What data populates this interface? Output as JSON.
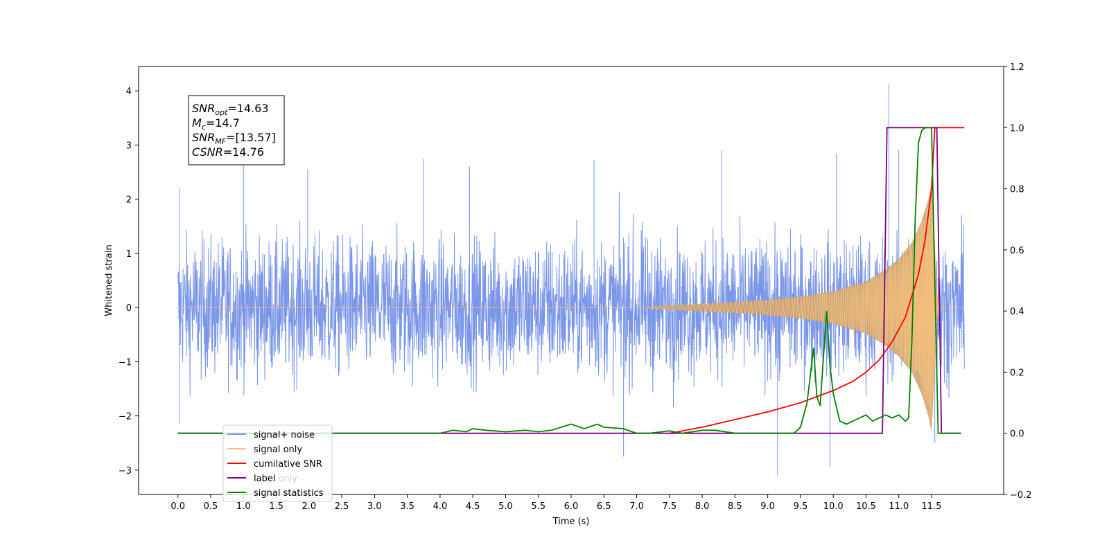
{
  "chart_data": {
    "type": "line",
    "xlabel": "Time (s)",
    "ylabel": "Whitened strain",
    "xlim": [
      -0.6,
      12.6
    ],
    "ylim": [
      -3.45,
      4.45
    ],
    "y2lim": [
      -0.2,
      1.2
    ],
    "x_ticks": [
      "0.0",
      "0.5",
      "1.0",
      "1.5",
      "2.0",
      "2.5",
      "3.0",
      "3.5",
      "4.0",
      "4.5",
      "5.0",
      "5.5",
      "6.0",
      "6.5",
      "7.0",
      "7.5",
      "8.0",
      "8.5",
      "9.0",
      "9.5",
      "10.0",
      "10.5",
      "11.0",
      "11.5"
    ],
    "y_ticks": [
      "−3",
      "−2",
      "−1",
      "0",
      "1",
      "2",
      "3",
      "4"
    ],
    "y2_ticks": [
      "−0.2",
      "0.0",
      "0.2",
      "0.4",
      "0.6",
      "0.8",
      "1.0",
      "1.2"
    ],
    "stats_box": [
      {
        "base": "SNR",
        "sub": "opt",
        "rest": "=14.63"
      },
      {
        "base": "M",
        "sub": "c",
        "rest": "=14.7"
      },
      {
        "base": "SNR",
        "sub": "MF",
        "rest": "=[13.57]"
      },
      {
        "base": "CSNR",
        "sub": "",
        "rest": "=14.76"
      }
    ],
    "legend": [
      {
        "label": "signal+ noise",
        "color": "#7b96e8"
      },
      {
        "label": "signal only",
        "color": "#f5c07a"
      },
      {
        "label": "cumilative SNR",
        "color": "#ff0000"
      },
      {
        "label": "label",
        "color": "#800080"
      },
      {
        "label": "signal statistics",
        "color": "#008000"
      }
    ],
    "hidden_legend_text": "label only",
    "series": [
      {
        "name": "signal+ noise",
        "color": "#7b96e8",
        "axis": "left",
        "kind": "noise",
        "x_range": [
          0.0,
          12.0
        ],
        "amplitude": 1.8,
        "spikes": [
          [
            0.02,
            2.2
          ],
          [
            1.0,
            2.72
          ],
          [
            1.98,
            2.55
          ],
          [
            3.75,
            2.75
          ],
          [
            4.45,
            2.6
          ],
          [
            6.35,
            2.72
          ],
          [
            8.3,
            2.9
          ],
          [
            10.05,
            2.85
          ],
          [
            10.85,
            4.13
          ],
          [
            11.0,
            2.9
          ],
          [
            0.02,
            -2.15
          ],
          [
            6.8,
            -2.75
          ],
          [
            9.15,
            -3.1
          ],
          [
            9.95,
            -2.95
          ],
          [
            11.55,
            -2.5
          ]
        ]
      },
      {
        "name": "signal only",
        "color": "#f5c07a",
        "axis": "left",
        "kind": "chirp",
        "envelope": [
          [
            0.0,
            0.0
          ],
          [
            7.0,
            0.0
          ],
          [
            7.5,
            0.04
          ],
          [
            8.0,
            0.07
          ],
          [
            8.5,
            0.1
          ],
          [
            9.0,
            0.14
          ],
          [
            9.5,
            0.2
          ],
          [
            10.0,
            0.3
          ],
          [
            10.5,
            0.48
          ],
          [
            10.8,
            0.7
          ],
          [
            11.0,
            0.9
          ],
          [
            11.2,
            1.2
          ],
          [
            11.35,
            1.6
          ],
          [
            11.45,
            2.0
          ],
          [
            11.5,
            2.3
          ],
          [
            11.55,
            1.2
          ],
          [
            11.58,
            0.3
          ],
          [
            11.62,
            0.0
          ],
          [
            12.0,
            0.0
          ]
        ]
      },
      {
        "name": "cumilative SNR",
        "color": "#ff0000",
        "axis": "right",
        "x": [
          7.5,
          8.0,
          8.5,
          9.0,
          9.5,
          10.0,
          10.3,
          10.5,
          10.7,
          10.9,
          11.1,
          11.3,
          11.4,
          11.5,
          11.55,
          11.6,
          12.0
        ],
        "y": [
          0.0,
          0.02,
          0.045,
          0.07,
          0.1,
          0.14,
          0.17,
          0.2,
          0.24,
          0.3,
          0.38,
          0.52,
          0.63,
          0.8,
          1.0,
          1.0,
          1.0
        ]
      },
      {
        "name": "label",
        "color": "#800080",
        "axis": "right",
        "x": [
          0.0,
          10.75,
          10.82,
          11.58,
          11.65,
          11.95
        ],
        "y": [
          0.0,
          0.0,
          1.0,
          1.0,
          0.0,
          0.0
        ]
      },
      {
        "name": "signal statistics",
        "color": "#008000",
        "axis": "right",
        "x": [
          0.0,
          4.0,
          4.2,
          4.4,
          4.5,
          4.7,
          5.0,
          5.3,
          5.5,
          5.7,
          6.0,
          6.2,
          6.4,
          6.5,
          6.8,
          7.0,
          7.2,
          7.5,
          7.7,
          8.0,
          8.2,
          8.5,
          9.0,
          9.4,
          9.5,
          9.6,
          9.7,
          9.75,
          9.8,
          9.85,
          9.9,
          9.95,
          10.0,
          10.1,
          10.2,
          10.3,
          10.4,
          10.5,
          10.6,
          10.7,
          10.8,
          10.9,
          11.0,
          11.1,
          11.15,
          11.2,
          11.25,
          11.3,
          11.35,
          11.4,
          11.5,
          11.55,
          11.6,
          11.65,
          11.95
        ],
        "y": [
          0.0,
          0.0,
          0.01,
          0.005,
          0.015,
          0.01,
          0.005,
          0.01,
          0.005,
          0.01,
          0.03,
          0.015,
          0.03,
          0.02,
          0.015,
          0.0,
          0.0,
          0.008,
          0.0,
          0.01,
          0.01,
          0.0,
          0.0,
          0.0,
          0.02,
          0.1,
          0.28,
          0.12,
          0.09,
          0.25,
          0.4,
          0.22,
          0.13,
          0.04,
          0.03,
          0.04,
          0.05,
          0.06,
          0.04,
          0.05,
          0.06,
          0.05,
          0.06,
          0.04,
          0.05,
          0.3,
          0.7,
          0.95,
          0.99,
          1.0,
          1.0,
          0.5,
          0.0,
          0.0,
          0.0
        ]
      }
    ]
  }
}
